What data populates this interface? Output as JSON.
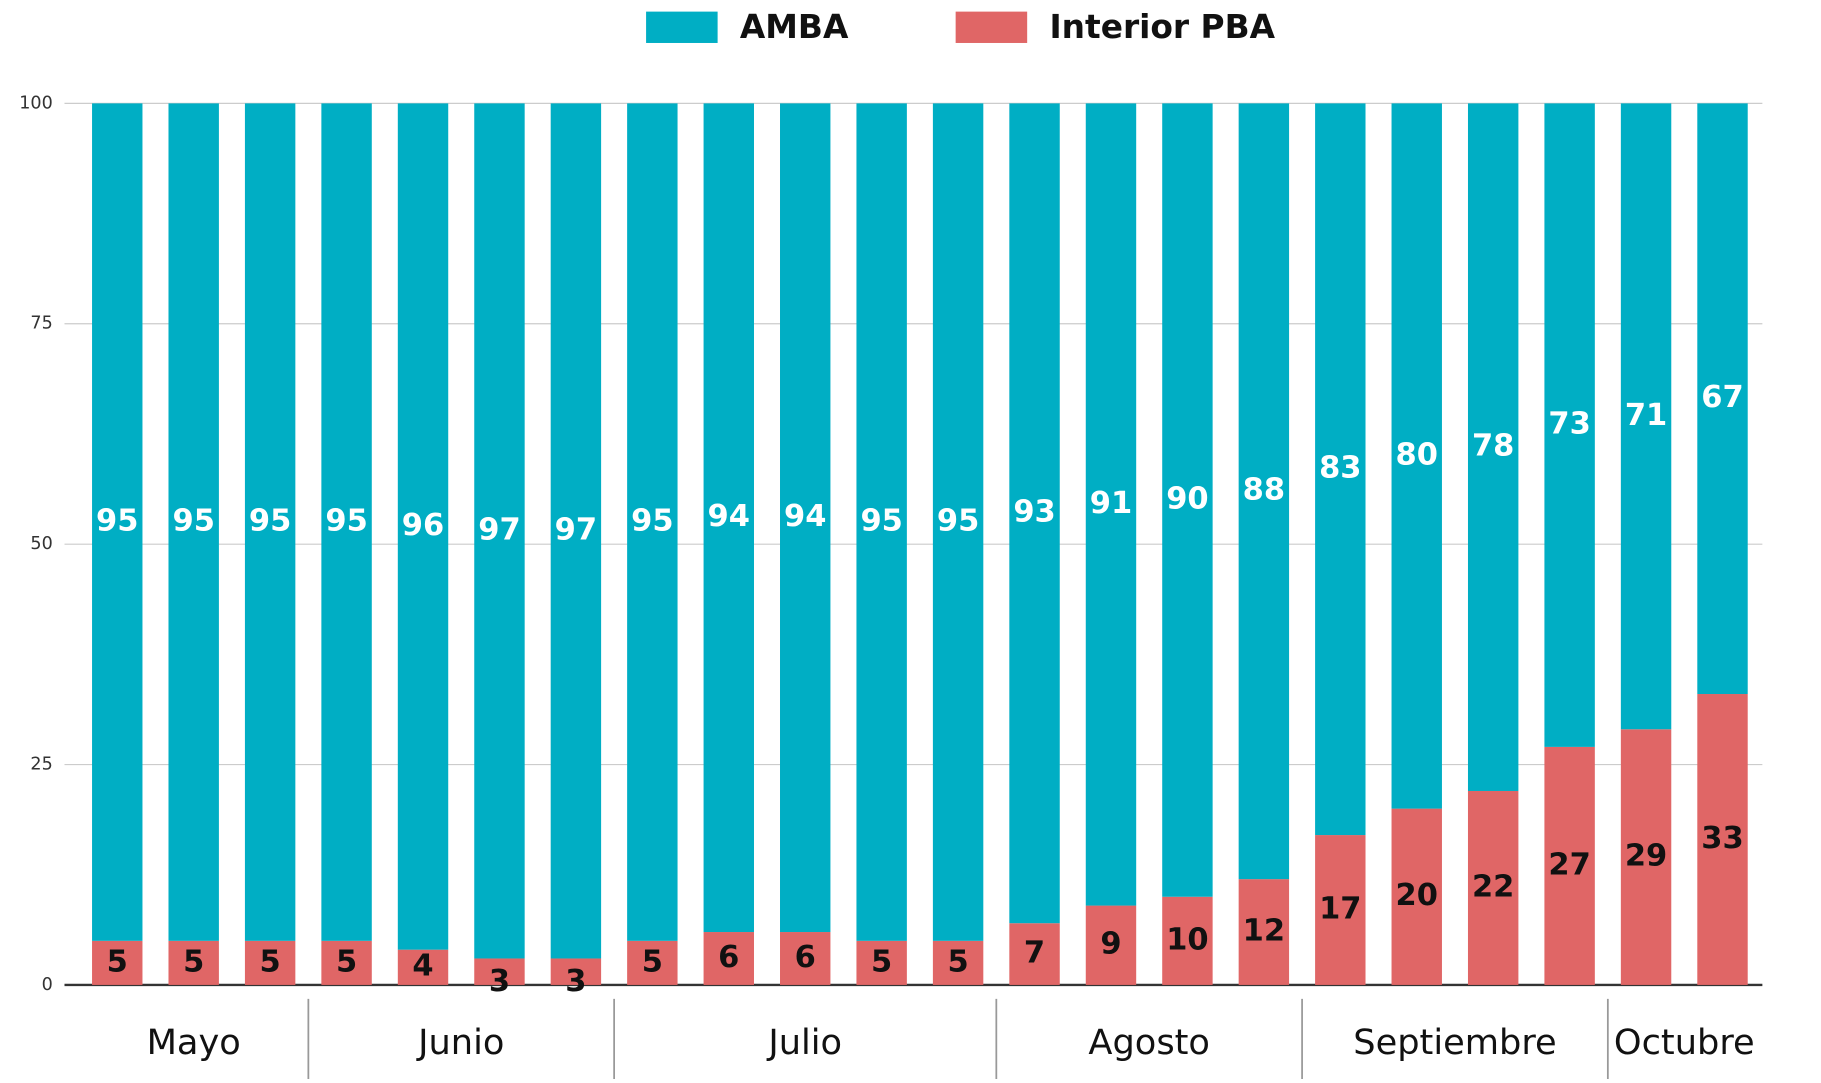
{
  "chart_data": {
    "type": "stacked-bar",
    "categories": [
      null,
      null,
      null,
      null,
      null,
      null,
      null,
      null,
      null,
      null,
      null,
      null,
      null,
      null,
      null,
      null,
      null,
      null,
      null,
      null,
      null,
      null
    ],
    "groups": [
      {
        "name": "Mayo",
        "size": 3
      },
      {
        "name": "Junio",
        "size": 4
      },
      {
        "name": "Julio",
        "size": 5
      },
      {
        "name": "Agosto",
        "size": 4
      },
      {
        "name": "Septiembre",
        "size": 4
      },
      {
        "name": "Octubre",
        "size": 2
      }
    ],
    "series": [
      {
        "name": "Interior PBA",
        "color": "#e06666",
        "label_color": "#111111",
        "values": [
          5,
          5,
          5,
          5,
          4,
          3,
          3,
          5,
          6,
          6,
          5,
          5,
          7,
          9,
          10,
          12,
          17,
          20,
          22,
          27,
          29,
          33
        ]
      },
      {
        "name": "AMBA",
        "color": "#00aec4",
        "label_color": "#ffffff",
        "values": [
          95,
          95,
          95,
          95,
          96,
          97,
          97,
          95,
          94,
          94,
          95,
          95,
          93,
          91,
          90,
          88,
          83,
          80,
          78,
          73,
          71,
          67
        ]
      }
    ],
    "legend_order": [
      1,
      0
    ],
    "ylim": [
      0,
      100
    ],
    "yticks": [
      0,
      25,
      50,
      75,
      100
    ],
    "grid": true
  }
}
